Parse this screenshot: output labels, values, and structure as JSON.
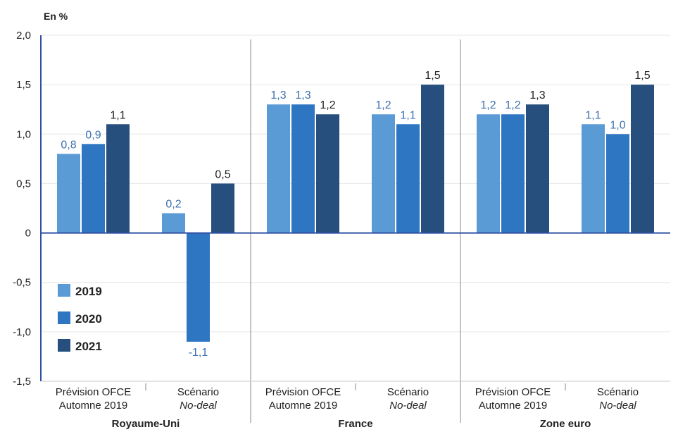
{
  "chart_data": {
    "type": "bar",
    "unit_label": "En %",
    "ylim": [
      -1.5,
      2.0
    ],
    "yticks": [
      "-1,5",
      "-1,0",
      "-0,5",
      "0",
      "0,5",
      "1,0",
      "1,5",
      "2,0"
    ],
    "ytick_values": [
      -1.5,
      -1.0,
      -0.5,
      0,
      0.5,
      1.0,
      1.5,
      2.0
    ],
    "grid": true,
    "legend_position": "bottom-left",
    "series": [
      {
        "name": "2019",
        "color": "#5b9bd5"
      },
      {
        "name": "2020",
        "color": "#2e75c2"
      },
      {
        "name": "2021",
        "color": "#264f7d"
      }
    ],
    "label_colors": [
      "#3d6fae",
      "#3d6fae",
      "#222222"
    ],
    "groups": [
      {
        "name": "Royaume-Uni",
        "scenarios": [
          {
            "line1": "Prévision OFCE",
            "line2": "Automne 2019",
            "italic2": false,
            "values": [
              0.8,
              0.9,
              1.1
            ],
            "labels": [
              "0,8",
              "0,9",
              "1,1"
            ]
          },
          {
            "line1": "Scénario",
            "line2": "No-deal",
            "italic2": true,
            "values": [
              0.2,
              -1.1,
              0.5
            ],
            "labels": [
              "0,2",
              "-1,1",
              "0,5"
            ]
          }
        ]
      },
      {
        "name": "France",
        "scenarios": [
          {
            "line1": "Prévision OFCE",
            "line2": "Automne 2019",
            "italic2": false,
            "values": [
              1.3,
              1.3,
              1.2
            ],
            "labels": [
              "1,3",
              "1,3",
              "1,2"
            ]
          },
          {
            "line1": "Scénario",
            "line2": "No-deal",
            "italic2": true,
            "values": [
              1.2,
              1.1,
              1.5
            ],
            "labels": [
              "1,2",
              "1,1",
              "1,5"
            ]
          }
        ]
      },
      {
        "name": "Zone euro",
        "scenarios": [
          {
            "line1": "Prévision OFCE",
            "line2": "Automne 2019",
            "italic2": false,
            "values": [
              1.2,
              1.2,
              1.3
            ],
            "labels": [
              "1,2",
              "1,2",
              "1,3"
            ]
          },
          {
            "line1": "Scénario",
            "line2": "No-deal",
            "italic2": true,
            "values": [
              1.1,
              1.0,
              1.5
            ],
            "labels": [
              "1,1",
              "1,0",
              "1,5"
            ]
          }
        ]
      }
    ]
  }
}
